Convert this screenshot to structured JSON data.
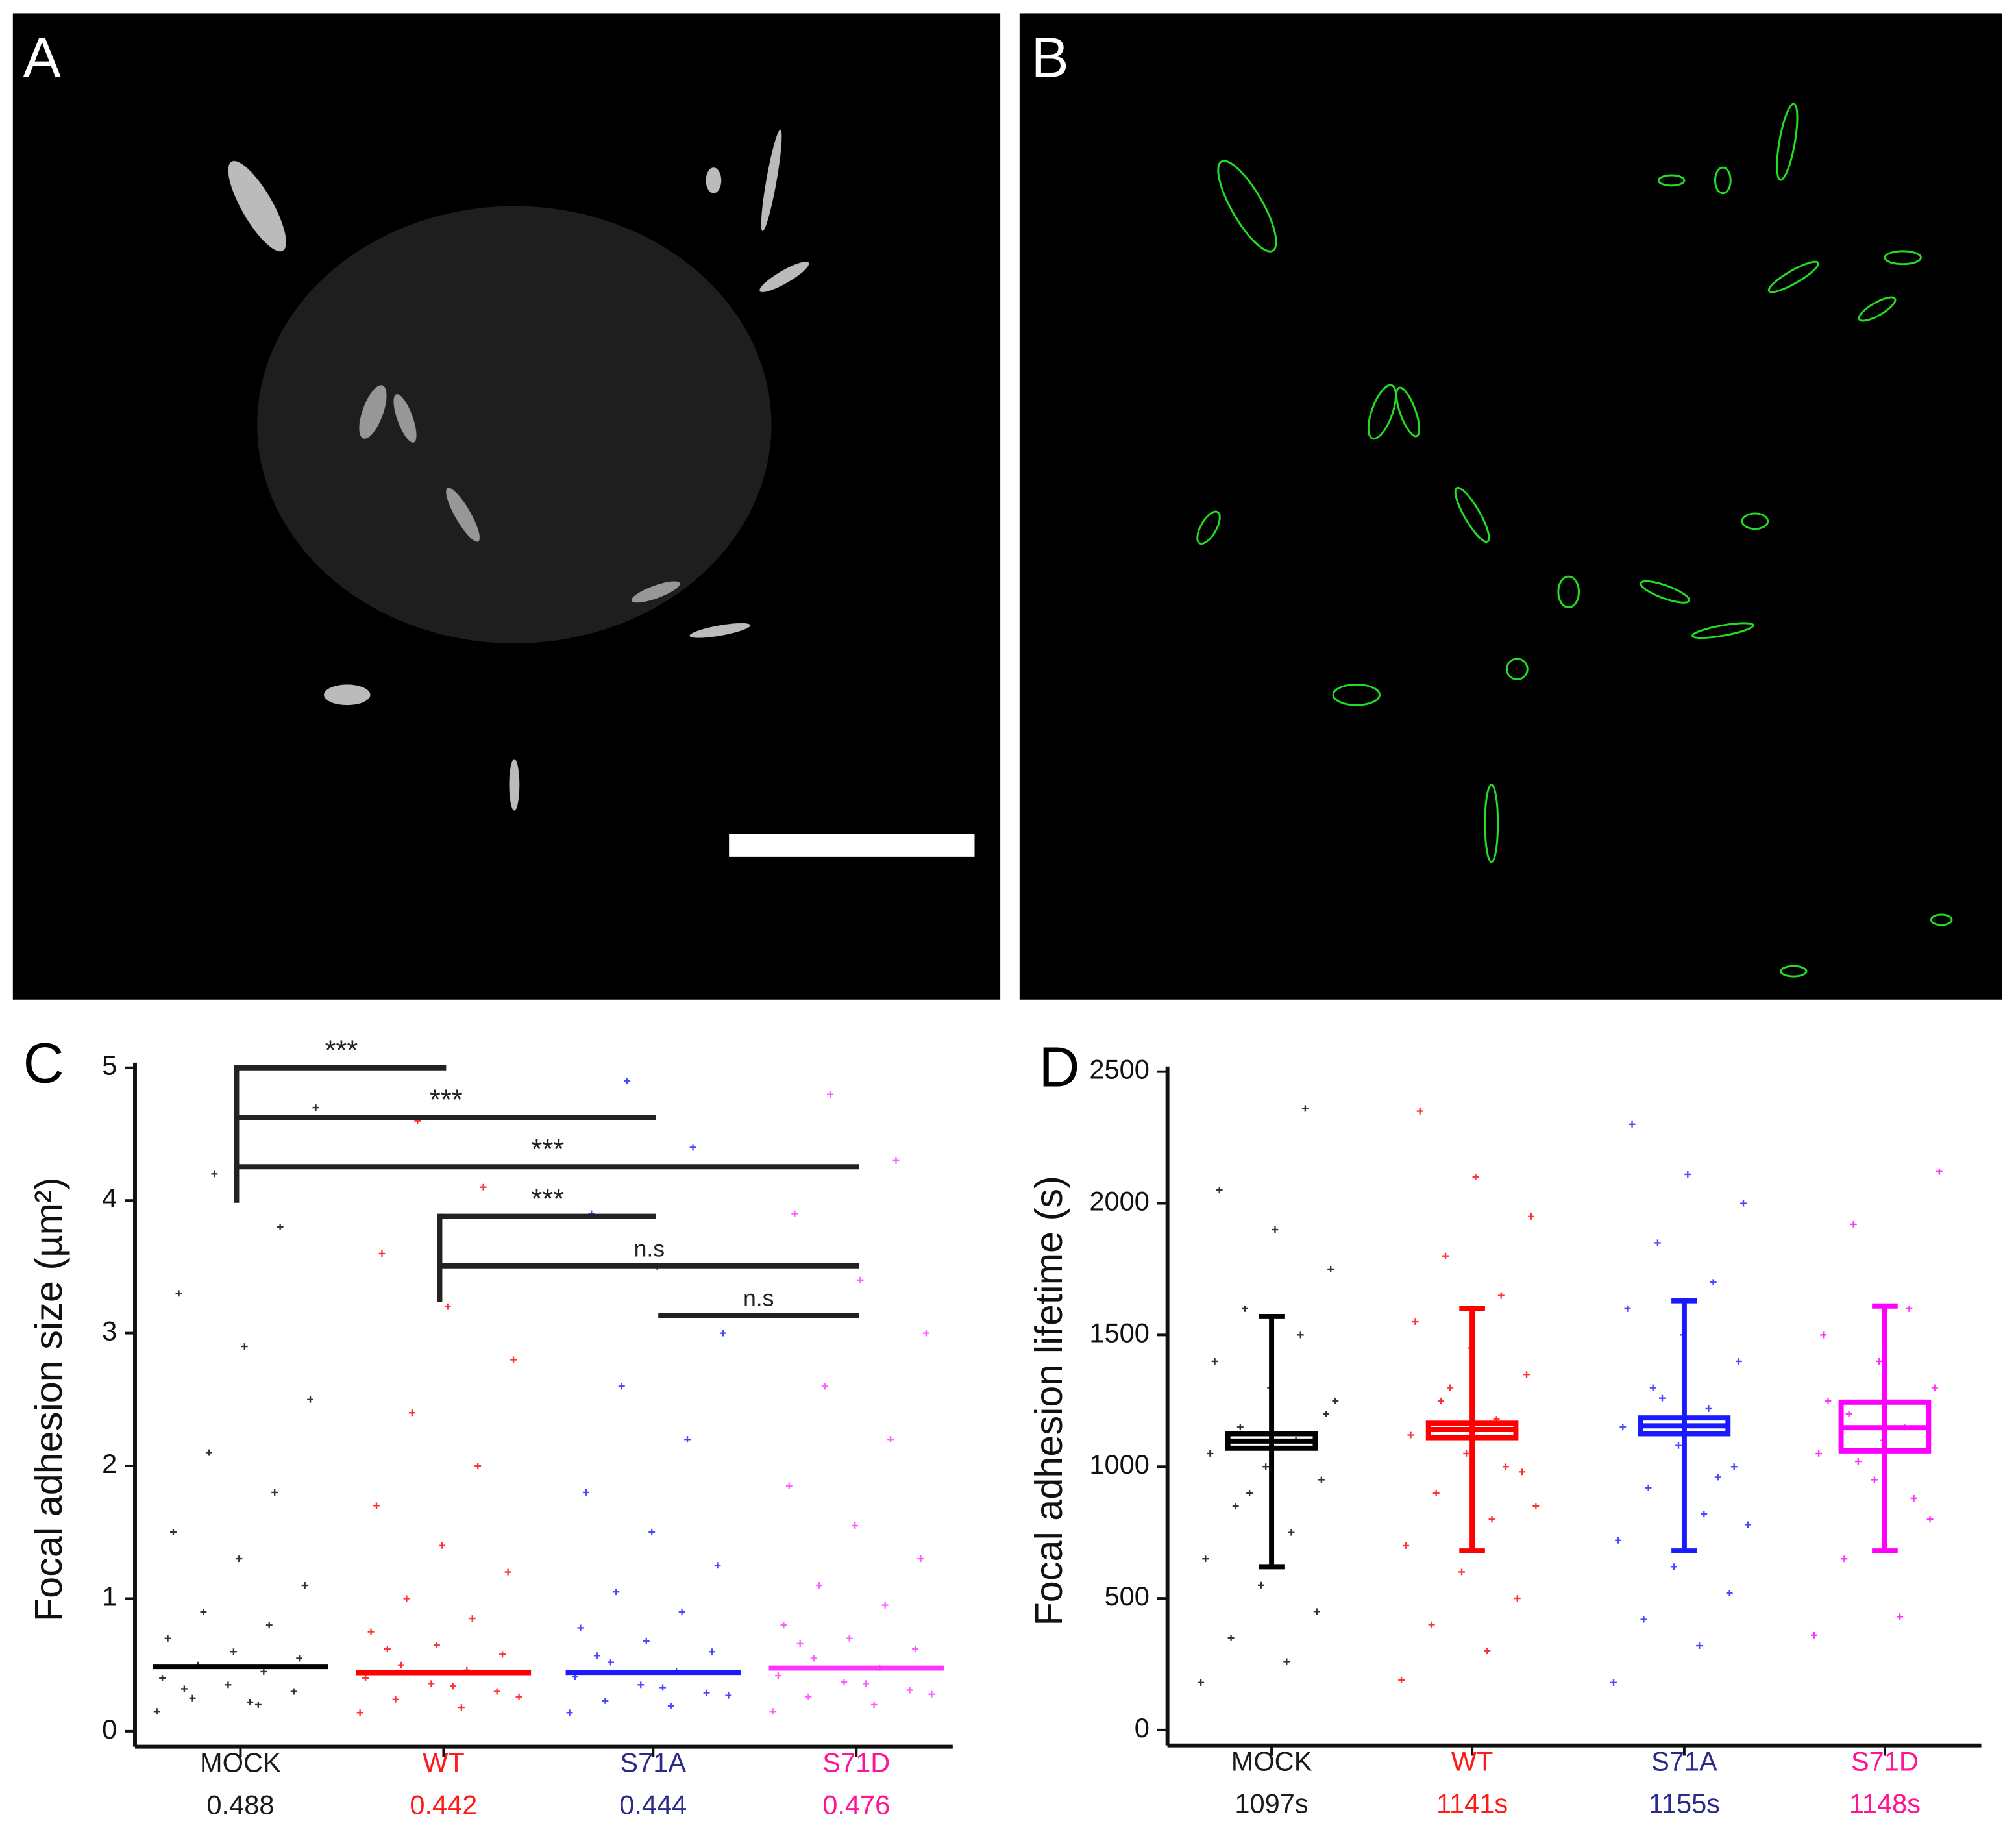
{
  "panels": {
    "a": {
      "label": "A"
    },
    "b": {
      "label": "B"
    }
  },
  "chart_data": [
    {
      "type": "strip",
      "panel_label": "C",
      "ylabel": "Focal adhesion size (µm²)",
      "categories": [
        "MOCK",
        "WT",
        "S71A",
        "S71D"
      ],
      "colors": [
        "#000000",
        "#ff0000",
        "#1a1aff",
        "#ff33ff"
      ],
      "label_colors": [
        "#1a1a1a",
        "#ff1a1a",
        "#2a2a8c",
        "#ff1493"
      ],
      "values": [
        0.488,
        0.442,
        0.444,
        0.476
      ],
      "points": [
        [
          0.15,
          0.2,
          0.25,
          0.3,
          0.35,
          0.4,
          0.45,
          0.5,
          0.55,
          0.6,
          0.7,
          0.8,
          0.9,
          1.1,
          1.3,
          1.5,
          1.8,
          2.1,
          2.5,
          2.9,
          3.3,
          3.8,
          4.2,
          4.7,
          0.22,
          0.32
        ],
        [
          0.14,
          0.18,
          0.24,
          0.3,
          0.36,
          0.4,
          0.46,
          0.5,
          0.58,
          0.65,
          0.75,
          0.85,
          1.0,
          1.2,
          1.4,
          1.7,
          2.0,
          2.4,
          2.8,
          3.2,
          3.6,
          4.1,
          4.6,
          0.26,
          0.34,
          0.62
        ],
        [
          0.14,
          0.19,
          0.23,
          0.29,
          0.35,
          0.41,
          0.45,
          0.52,
          0.6,
          0.68,
          0.78,
          0.9,
          1.05,
          1.25,
          1.5,
          1.8,
          2.2,
          2.6,
          3.0,
          3.5,
          3.9,
          4.4,
          4.9,
          0.27,
          0.33,
          0.57
        ],
        [
          0.15,
          0.2,
          0.26,
          0.31,
          0.37,
          0.42,
          0.48,
          0.55,
          0.62,
          0.7,
          0.8,
          0.95,
          1.1,
          1.3,
          1.55,
          1.85,
          2.2,
          2.6,
          3.0,
          3.4,
          3.9,
          4.3,
          4.8,
          0.28,
          0.36,
          0.66
        ]
      ],
      "ylim": [
        0,
        5
      ],
      "yticks": [
        0,
        1,
        2,
        3,
        4,
        5
      ],
      "comparisons": [
        {
          "between": [
            "MOCK",
            "WT"
          ],
          "label": "***"
        },
        {
          "between": [
            "MOCK",
            "S71A"
          ],
          "label": "***"
        },
        {
          "between": [
            "MOCK",
            "S71D"
          ],
          "label": "***"
        },
        {
          "between": [
            "WT",
            "S71A"
          ],
          "label": "***"
        },
        {
          "between": [
            "WT",
            "S71D"
          ],
          "label": "n.s"
        },
        {
          "between": [
            "S71A",
            "S71D"
          ],
          "label": "n.s"
        }
      ]
    },
    {
      "type": "box",
      "panel_label": "D",
      "ylabel": "Focal adhesion lifetime (s)",
      "categories": [
        "MOCK",
        "WT",
        "S71A",
        "S71D"
      ],
      "colors": [
        "#000000",
        "#ff0000",
        "#1a1aff",
        "#ff00ff"
      ],
      "label_colors": [
        "#1a1a1a",
        "#ff1a1a",
        "#2a2a8c",
        "#ff1493"
      ],
      "values": [
        1097,
        1141,
        1155,
        1148
      ],
      "value_labels": [
        "1097s",
        "1141s",
        "1155s",
        "1148s"
      ],
      "q1": [
        1070,
        1110,
        1125,
        1060
      ],
      "q3": [
        1125,
        1165,
        1185,
        1245
      ],
      "whisker_low": [
        620,
        680,
        680,
        680
      ],
      "whisker_high": [
        1570,
        1600,
        1630,
        1610
      ],
      "points": [
        [
          180,
          260,
          350,
          450,
          550,
          650,
          750,
          850,
          950,
          1000,
          1050,
          1100,
          1150,
          1200,
          1300,
          1400,
          1500,
          1600,
          1750,
          1900,
          2050,
          2360,
          900,
          1250
        ],
        [
          190,
          300,
          400,
          500,
          600,
          700,
          800,
          900,
          980,
          1050,
          1120,
          1180,
          1250,
          1350,
          1450,
          1550,
          1650,
          1800,
          1950,
          2100,
          2350,
          1000,
          1300,
          850
        ],
        [
          180,
          320,
          420,
          520,
          620,
          720,
          820,
          920,
          1000,
          1080,
          1150,
          1220,
          1300,
          1400,
          1500,
          1600,
          1700,
          1850,
          2000,
          2110,
          2300,
          960,
          1260,
          780
        ],
        [
          360,
          430,
          650,
          800,
          950,
          1050,
          1150,
          1200,
          1300,
          1400,
          1500,
          1600,
          1920,
          2120,
          1100,
          1250,
          880,
          1020
        ]
      ],
      "ylim": [
        0,
        2500
      ],
      "yticks": [
        0,
        500,
        1000,
        1500,
        2000,
        2500
      ]
    }
  ]
}
